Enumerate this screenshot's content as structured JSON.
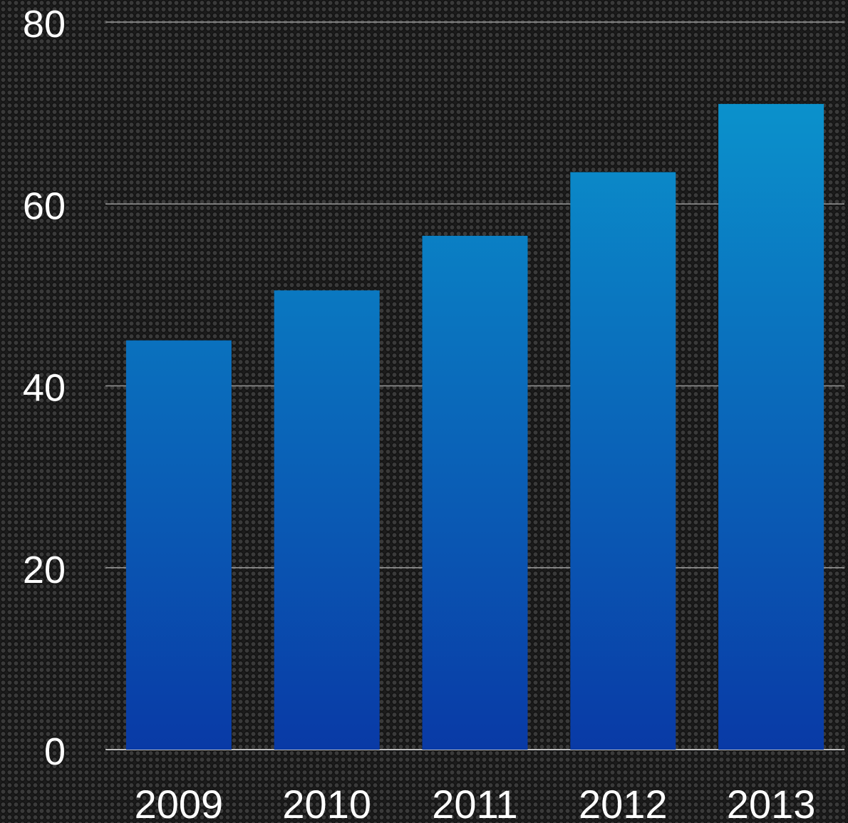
{
  "chart_data": {
    "type": "bar",
    "categories": [
      "2009",
      "2010",
      "2011",
      "2012",
      "2013"
    ],
    "values": [
      45,
      50.5,
      56.5,
      63.5,
      71
    ],
    "yticks": [
      0,
      20,
      40,
      60,
      80
    ],
    "ylim": [
      0,
      80
    ],
    "grid": true,
    "colors": {
      "bar_top": "#0b92cc",
      "bar_bottom": "#093aa6",
      "grid": "#9a9a9a",
      "text": "#ffffff"
    }
  }
}
